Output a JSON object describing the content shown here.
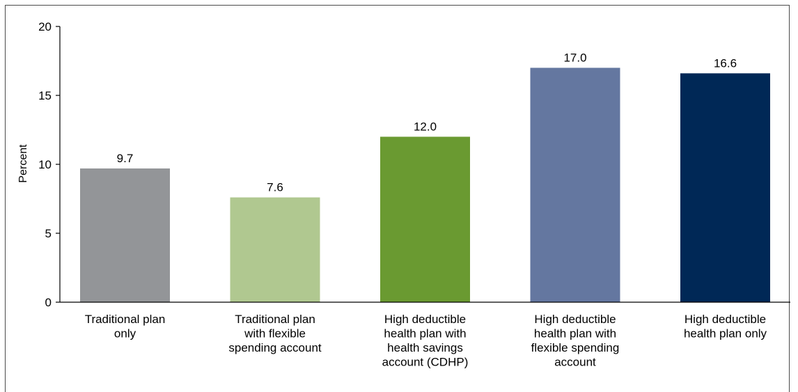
{
  "chart_data": {
    "type": "bar",
    "categories": [
      [
        "Traditional plan",
        "only"
      ],
      [
        "Traditional plan",
        "with flexible",
        "spending account"
      ],
      [
        "High deductible",
        "health plan with",
        "health savings",
        "account (CDHP)"
      ],
      [
        "High deductible",
        "health plan with",
        "flexible spending",
        "account"
      ],
      [
        "High deductible",
        "health plan only"
      ]
    ],
    "values": [
      9.7,
      7.6,
      12.0,
      17.0,
      16.6
    ],
    "value_labels": [
      "9.7",
      "7.6",
      "12.0",
      "17.0",
      "16.6"
    ],
    "colors": [
      "#939598",
      "#b0c890",
      "#6a9a31",
      "#6477a0",
      "#002856"
    ],
    "xlabel": "",
    "ylabel": "Percent",
    "ylim": [
      0,
      20
    ],
    "yticks": [
      0,
      5,
      10,
      15,
      20
    ],
    "grid": false,
    "legend": "none"
  }
}
